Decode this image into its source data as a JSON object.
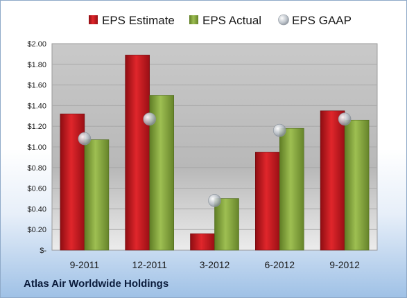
{
  "company": "Atlas Air Worldwide Holdings",
  "chart_data": {
    "type": "bar",
    "categories": [
      "9-2011",
      "12-2011",
      "3-2012",
      "6-2012",
      "9-2012"
    ],
    "series": [
      {
        "name": "EPS Estimate",
        "kind": "bar",
        "color": "#c0141c",
        "values": [
          1.32,
          1.89,
          0.16,
          0.95,
          1.35
        ]
      },
      {
        "name": "EPS Actual",
        "kind": "bar",
        "color": "#86a83c",
        "values": [
          1.07,
          1.5,
          0.5,
          1.18,
          1.26
        ]
      },
      {
        "name": "EPS GAAP",
        "kind": "marker",
        "color": "#b4bcc6",
        "values": [
          1.08,
          1.27,
          0.48,
          1.16,
          1.27
        ]
      }
    ],
    "yticks": [
      "$-",
      "$0.20",
      "$0.40",
      "$0.60",
      "$0.80",
      "$1.00",
      "$1.20",
      "$1.40",
      "$1.60",
      "$1.80",
      "$2.00"
    ],
    "ylim": [
      0,
      2.0
    ],
    "grid": true,
    "legend": "top"
  }
}
